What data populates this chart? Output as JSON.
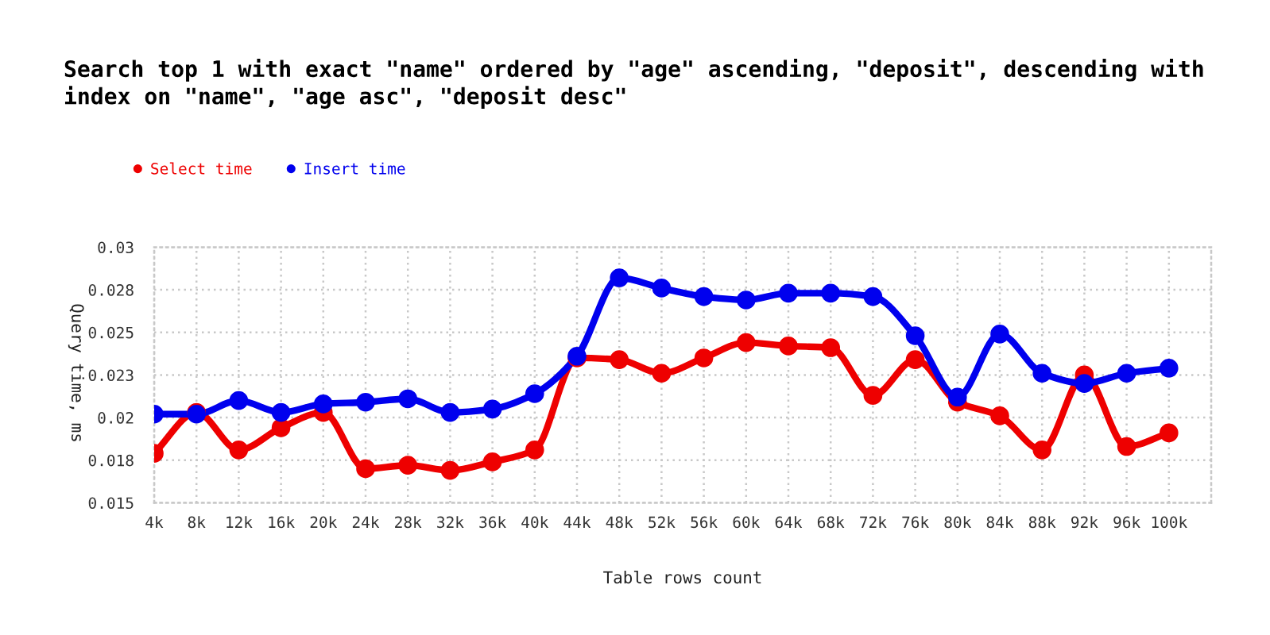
{
  "chart_data": {
    "type": "line",
    "title": "Search top 1 with exact \"name\" ordered by \"age\" ascending, \"deposit\", descending with index on \"name\", \"age asc\", \"deposit desc\"",
    "xlabel": "Table rows count",
    "ylabel": "Query time, ms",
    "categories": [
      "4k",
      "8k",
      "12k",
      "16k",
      "20k",
      "24k",
      "28k",
      "32k",
      "36k",
      "40k",
      "44k",
      "48k",
      "52k",
      "56k",
      "60k",
      "64k",
      "68k",
      "72k",
      "76k",
      "80k",
      "84k",
      "88k",
      "92k",
      "96k",
      "100k"
    ],
    "series": [
      {
        "name": "Select time",
        "color": "#ee0000",
        "values": [
          0.0179,
          0.0203,
          0.0181,
          0.0194,
          0.0203,
          0.017,
          0.0172,
          0.0169,
          0.0174,
          0.0181,
          0.0235,
          0.0234,
          0.0226,
          0.0235,
          0.0244,
          0.0242,
          0.0241,
          0.0213,
          0.0234,
          0.0209,
          0.0201,
          0.0181,
          0.0225,
          0.0183,
          0.0191
        ]
      },
      {
        "name": "Insert time",
        "color": "#0000ee",
        "values": [
          0.0202,
          0.0202,
          0.021,
          0.0203,
          0.0208,
          0.0209,
          0.0211,
          0.0203,
          0.0205,
          0.0214,
          0.0236,
          0.0282,
          0.0276,
          0.0271,
          0.0269,
          0.0273,
          0.0273,
          0.0271,
          0.0248,
          0.0212,
          0.0249,
          0.0226,
          0.022,
          0.0226,
          0.0229
        ]
      }
    ],
    "ylim": [
      0.015,
      0.03
    ],
    "yticks": [
      0.015,
      {
        "value": 0.0175,
        "label": "0.018"
      },
      0.02,
      {
        "value": 0.0225,
        "label": "0.023"
      },
      0.025,
      {
        "value": 0.0275,
        "label": "0.028"
      },
      0.03
    ],
    "grid": true,
    "legend": "top left",
    "marker": "circle",
    "line_style": "solid"
  }
}
